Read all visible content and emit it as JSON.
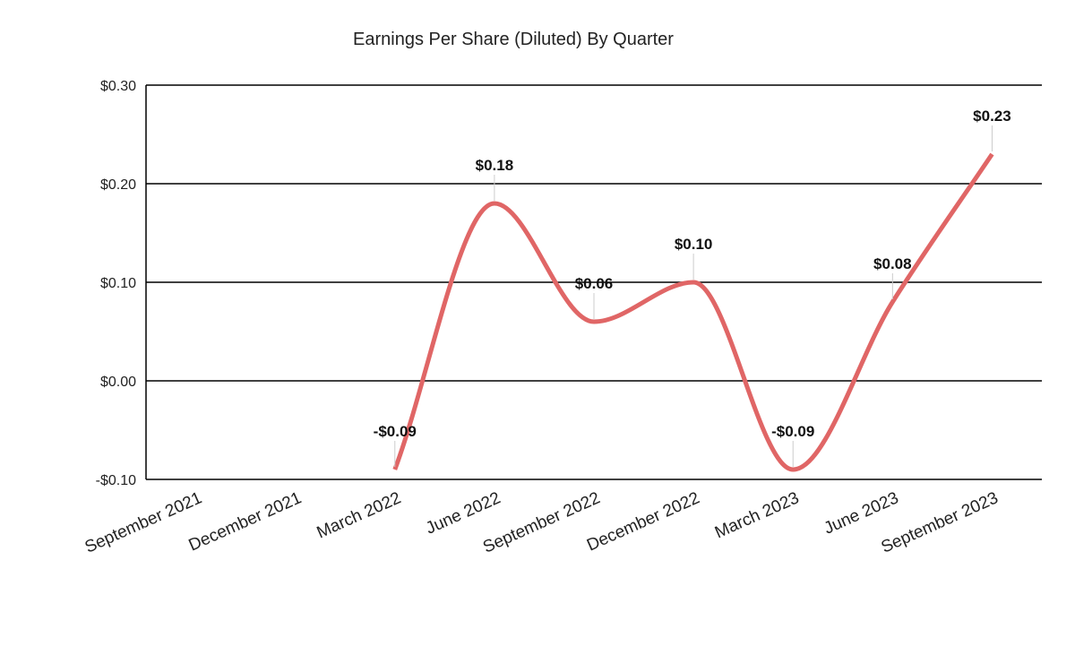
{
  "chart_data": {
    "type": "line",
    "title": "Earnings Per Share (Diluted) By Quarter",
    "xlabel": "",
    "ylabel": "",
    "categories": [
      "September 2021",
      "December 2021",
      "March 2022",
      "June 2022",
      "September 2022",
      "December 2022",
      "March 2023",
      "June 2023",
      "September 2023"
    ],
    "series": [
      {
        "values": [
          null,
          null,
          -0.09,
          0.18,
          0.06,
          0.1,
          -0.09,
          0.08,
          0.23
        ],
        "data_labels": [
          "",
          "",
          "-$0.09",
          "$0.18",
          "$0.06",
          "$0.10",
          "-$0.09",
          "$0.08",
          "$0.23"
        ],
        "color": "#e06666"
      }
    ],
    "ylim": [
      -0.1,
      0.3
    ],
    "yticks": [
      {
        "value": 0.3,
        "label": "$0.30"
      },
      {
        "value": 0.2,
        "label": "$0.20"
      },
      {
        "value": 0.1,
        "label": "$0.10"
      },
      {
        "value": 0.0,
        "label": "$0.00"
      },
      {
        "value": -0.1,
        "label": "-$0.10"
      }
    ],
    "grid": true,
    "smooth": true,
    "legend": "none"
  }
}
